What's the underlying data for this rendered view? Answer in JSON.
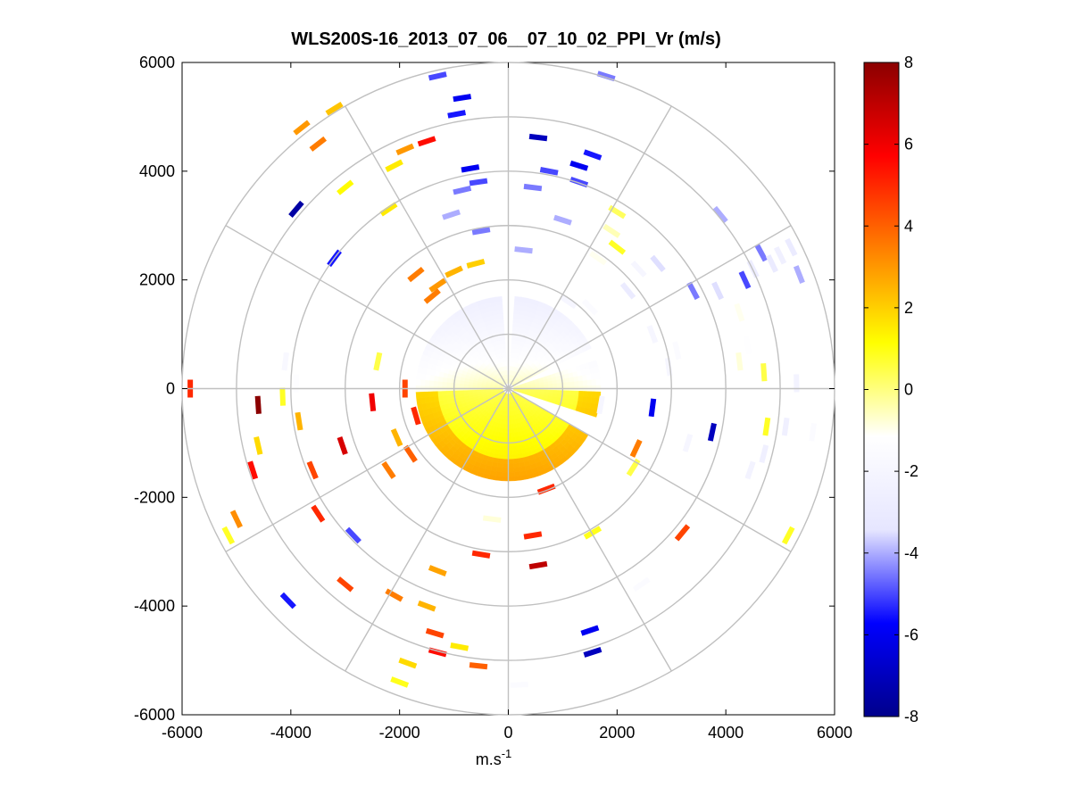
{
  "chart_data": {
    "type": "heatmap",
    "title": "WLS200S-16_2013_07_06__07_10_02_PPI_Vr (m/s)",
    "xlabel_base": "m.s",
    "xlabel_exp": "-1",
    "ylabel": "",
    "xlim": [
      -6000,
      6000
    ],
    "ylim": [
      -6000,
      6000
    ],
    "x_ticks": [
      -6000,
      -4000,
      -2000,
      0,
      2000,
      4000,
      6000
    ],
    "y_ticks": [
      6000,
      4000,
      2000,
      0,
      -2000,
      -4000,
      -6000
    ],
    "x_tick_labels": [
      "-6000",
      "-4000",
      "-2000",
      "0",
      "2000",
      "4000",
      "6000"
    ],
    "y_tick_labels": [
      "6000",
      "4000",
      "2000",
      "0",
      "-2000",
      "-4000",
      "-6000"
    ],
    "polar_grid": {
      "rings_m": [
        1000,
        2000,
        3000,
        4000,
        5000,
        6000
      ],
      "spokes_deg": [
        0,
        30,
        60,
        90,
        120,
        150,
        180,
        210,
        240,
        270,
        300,
        330
      ]
    },
    "colorbar": {
      "min": -8,
      "max": 8,
      "ticks": [
        8,
        6,
        4,
        2,
        0,
        -2,
        -4,
        -6,
        -8
      ],
      "tick_labels": [
        "8",
        "6",
        "4",
        "2",
        "0",
        "-2",
        "-4",
        "-6",
        "-8"
      ],
      "colormap": [
        "#00008b",
        "#0000ff",
        "#e6e6ff",
        "#ffffff",
        "#ffff00",
        "#ff8000",
        "#ff0000",
        "#8b0000"
      ]
    },
    "near_field": {
      "r_inner": 100,
      "r_outer_north": 1650,
      "r_outer_south": 1650,
      "north_velocity": -2.6,
      "south_velocity": 1.6,
      "gaps_deg": [
        [
          -2,
          2
        ],
        [
          64,
          70
        ],
        [
          110,
          118
        ]
      ]
    },
    "scatter_cells": [
      {
        "x": -5850,
        "y": 0,
        "v": 5.0
      },
      {
        "x": -4600,
        "y": -300,
        "v": 8.0
      },
      {
        "x": -4150,
        "y": -150,
        "v": 0.8
      },
      {
        "x": -3850,
        "y": -600,
        "v": 2.5
      },
      {
        "x": -3600,
        "y": -1500,
        "v": 4.5
      },
      {
        "x": -3050,
        "y": -1050,
        "v": 6.5
      },
      {
        "x": -3900,
        "y": 100,
        "v": -1.3
      },
      {
        "x": -4100,
        "y": 500,
        "v": -1.8
      },
      {
        "x": -4700,
        "y": -1500,
        "v": 5.5
      },
      {
        "x": -5000,
        "y": -2400,
        "v": 3.2
      },
      {
        "x": -5150,
        "y": -2700,
        "v": 0.8
      },
      {
        "x": -4600,
        "y": -1050,
        "v": 1.8
      },
      {
        "x": -2850,
        "y": -2700,
        "v": -5.0
      },
      {
        "x": -3500,
        "y": -2300,
        "v": 5.0
      },
      {
        "x": -4050,
        "y": -3900,
        "v": -5.5
      },
      {
        "x": -3000,
        "y": -3600,
        "v": 4.5
      },
      {
        "x": -2200,
        "y": -1500,
        "v": 3.5
      },
      {
        "x": -1800,
        "y": -1200,
        "v": 4.0
      },
      {
        "x": -2500,
        "y": -250,
        "v": 6.0
      },
      {
        "x": -1500,
        "y": -4000,
        "v": 2.5
      },
      {
        "x": -1350,
        "y": -4500,
        "v": 4.5
      },
      {
        "x": -1300,
        "y": -4850,
        "v": 5.5
      },
      {
        "x": -2100,
        "y": -3800,
        "v": 3.5
      },
      {
        "x": -1850,
        "y": -5050,
        "v": 1.8
      },
      {
        "x": -2000,
        "y": -5400,
        "v": 0.9
      },
      {
        "x": -900,
        "y": -4750,
        "v": 1.5
      },
      {
        "x": -550,
        "y": -5100,
        "v": 4.0
      },
      {
        "x": 200,
        "y": -5450,
        "v": -1.5
      },
      {
        "x": 450,
        "y": -2700,
        "v": 5.0
      },
      {
        "x": 550,
        "y": -3250,
        "v": 7.0
      },
      {
        "x": -500,
        "y": -3050,
        "v": 5.0
      },
      {
        "x": -1300,
        "y": -3350,
        "v": 2.8
      },
      {
        "x": -300,
        "y": -2400,
        "v": -0.8
      },
      {
        "x": 1550,
        "y": -2650,
        "v": 0.9
      },
      {
        "x": 2450,
        "y": -3600,
        "v": -1.5
      },
      {
        "x": 3200,
        "y": -2650,
        "v": 4.5
      },
      {
        "x": 1500,
        "y": -4450,
        "v": -6.0
      },
      {
        "x": 1550,
        "y": -4850,
        "v": -7.0
      },
      {
        "x": 2350,
        "y": -1100,
        "v": 3.5
      },
      {
        "x": 2300,
        "y": -1450,
        "v": 0.5
      },
      {
        "x": 3300,
        "y": -1000,
        "v": -2.0
      },
      {
        "x": 3750,
        "y": -800,
        "v": -7.0
      },
      {
        "x": 4700,
        "y": -1200,
        "v": -2.5
      },
      {
        "x": 5150,
        "y": -2700,
        "v": 0.8
      },
      {
        "x": 5100,
        "y": -700,
        "v": -2.5
      },
      {
        "x": 5600,
        "y": -800,
        "v": -1.5
      },
      {
        "x": 2650,
        "y": -350,
        "v": -6.0
      },
      {
        "x": 1700,
        "y": -300,
        "v": -2.0
      },
      {
        "x": 4500,
        "y": 2200,
        "v": -2.8
      },
      {
        "x": 4650,
        "y": 2500,
        "v": -4.5
      },
      {
        "x": 4850,
        "y": 2300,
        "v": -3.0
      },
      {
        "x": 5000,
        "y": 2450,
        "v": -2.5
      },
      {
        "x": 5200,
        "y": 2600,
        "v": -3.0
      },
      {
        "x": 5350,
        "y": 2100,
        "v": -4.0
      },
      {
        "x": 4250,
        "y": 1400,
        "v": -1.0
      },
      {
        "x": 4400,
        "y": 800,
        "v": -1.2
      },
      {
        "x": 4250,
        "y": 500,
        "v": -0.8
      },
      {
        "x": 5300,
        "y": 100,
        "v": -2.2
      },
      {
        "x": 4750,
        "y": -700,
        "v": 0.8
      },
      {
        "x": 4700,
        "y": 300,
        "v": 0.5
      },
      {
        "x": 4450,
        "y": -1500,
        "v": -2.2
      },
      {
        "x": 3850,
        "y": 1800,
        "v": -3.5
      },
      {
        "x": 4350,
        "y": 2000,
        "v": -5.0
      },
      {
        "x": 3400,
        "y": 1800,
        "v": -4.5
      },
      {
        "x": 3900,
        "y": 3200,
        "v": -4.0
      },
      {
        "x": 2650,
        "y": 1000,
        "v": -2.0
      },
      {
        "x": 2950,
        "y": 400,
        "v": -2.0
      },
      {
        "x": 3100,
        "y": 700,
        "v": -1.5
      },
      {
        "x": 2200,
        "y": 1800,
        "v": -3.0
      },
      {
        "x": 2400,
        "y": 2200,
        "v": -2.0
      },
      {
        "x": 2750,
        "y": 2300,
        "v": -3.5
      },
      {
        "x": 2000,
        "y": 2600,
        "v": 0.8
      },
      {
        "x": 1900,
        "y": 2900,
        "v": -0.5
      },
      {
        "x": 2000,
        "y": 3250,
        "v": 0.3
      },
      {
        "x": 1300,
        "y": 3800,
        "v": -5.0
      },
      {
        "x": 1300,
        "y": 4100,
        "v": -6.0
      },
      {
        "x": 550,
        "y": 4620,
        "v": -7.0
      },
      {
        "x": 750,
        "y": 4000,
        "v": -5.0
      },
      {
        "x": 1550,
        "y": 4300,
        "v": -5.5
      },
      {
        "x": 450,
        "y": 3700,
        "v": -4.5
      },
      {
        "x": 1000,
        "y": 3100,
        "v": -4.0
      },
      {
        "x": 280,
        "y": 2550,
        "v": -4.0
      },
      {
        "x": -500,
        "y": 2900,
        "v": -4.5
      },
      {
        "x": -1050,
        "y": 3200,
        "v": -4.0
      },
      {
        "x": -850,
        "y": 3650,
        "v": -4.5
      },
      {
        "x": -550,
        "y": 3800,
        "v": -5.0
      },
      {
        "x": -700,
        "y": 4050,
        "v": -6.0
      },
      {
        "x": -950,
        "y": 5050,
        "v": -5.5
      },
      {
        "x": -850,
        "y": 5350,
        "v": -6.0
      },
      {
        "x": -1300,
        "y": 5750,
        "v": -5.0
      },
      {
        "x": 1800,
        "y": 5750,
        "v": -4.5
      },
      {
        "x": -1900,
        "y": 4400,
        "v": 3.0
      },
      {
        "x": -1500,
        "y": 4550,
        "v": 5.5
      },
      {
        "x": -2100,
        "y": 4100,
        "v": 1.5
      },
      {
        "x": -3200,
        "y": 5150,
        "v": 2.2
      },
      {
        "x": -3800,
        "y": 4800,
        "v": 3.0
      },
      {
        "x": -3500,
        "y": 4500,
        "v": 3.5
      },
      {
        "x": -3000,
        "y": 3700,
        "v": 1.2
      },
      {
        "x": -3900,
        "y": 3300,
        "v": -7.5
      },
      {
        "x": -3200,
        "y": 2400,
        "v": -5.5
      },
      {
        "x": -2200,
        "y": 3300,
        "v": 1.5
      },
      {
        "x": -1700,
        "y": 2100,
        "v": 3.5
      },
      {
        "x": -1000,
        "y": 2150,
        "v": 2.5
      },
      {
        "x": -600,
        "y": 2300,
        "v": 2.0
      },
      {
        "x": -1300,
        "y": 1900,
        "v": 3.0
      },
      {
        "x": -1400,
        "y": 1700,
        "v": 3.5
      },
      {
        "x": 1100,
        "y": 1600,
        "v": -2.0
      },
      {
        "x": 1650,
        "y": 2400,
        "v": -1.0
      },
      {
        "x": 1500,
        "y": 1500,
        "v": -1.5
      },
      {
        "x": -2400,
        "y": 500,
        "v": 0.5
      },
      {
        "x": -1900,
        "y": 0,
        "v": 4.5
      },
      {
        "x": -1700,
        "y": -500,
        "v": 5.0
      },
      {
        "x": -2050,
        "y": -900,
        "v": 2.5
      },
      {
        "x": 700,
        "y": -1850,
        "v": 5.0
      }
    ]
  }
}
